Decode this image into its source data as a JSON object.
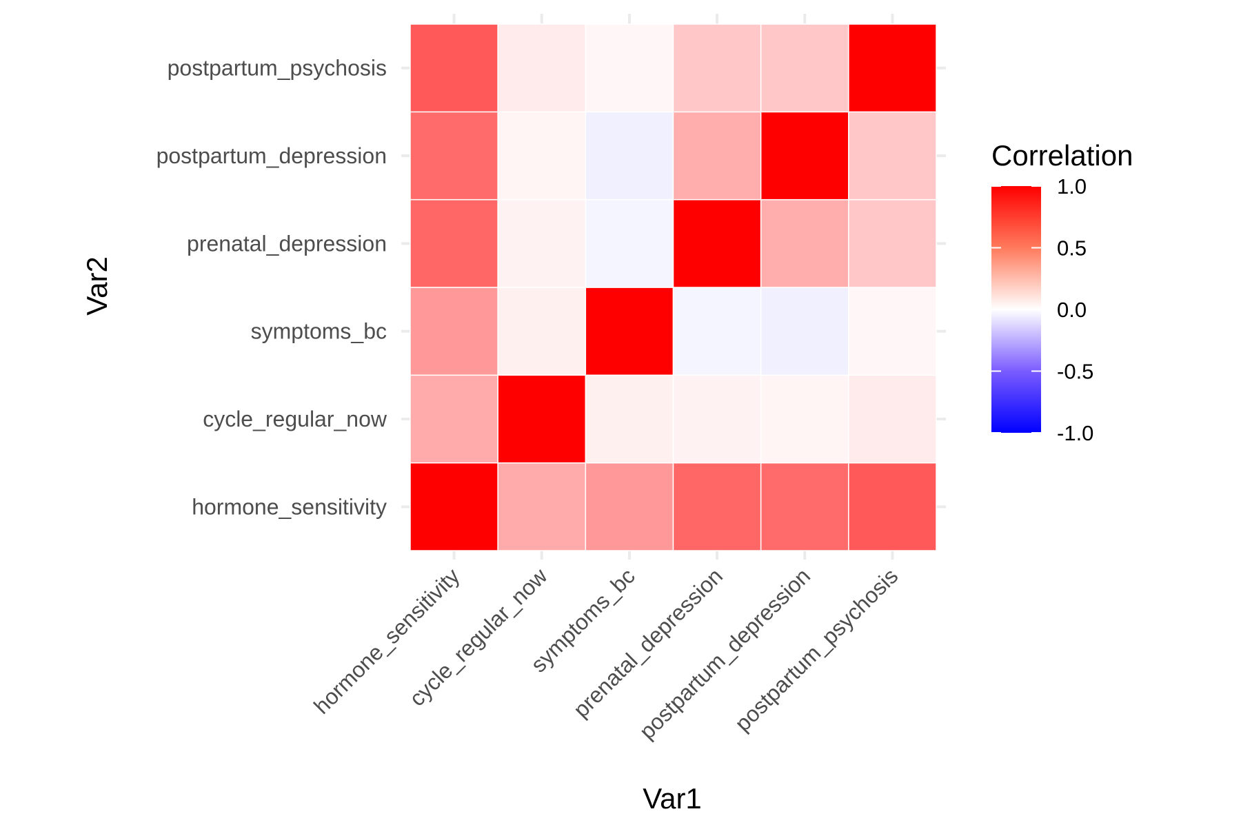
{
  "chart_data": {
    "type": "heatmap",
    "xlabel": "Var1",
    "ylabel": "Var2",
    "variables": [
      "hormone_sensitivity",
      "cycle_regular_now",
      "symptoms_bc",
      "prenatal_depression",
      "postpartum_depression",
      "postpartum_psychosis"
    ],
    "matrix": [
      [
        1.0,
        0.33,
        0.4,
        0.6,
        0.58,
        0.65
      ],
      [
        0.33,
        1.0,
        0.06,
        0.05,
        0.04,
        0.08
      ],
      [
        0.4,
        0.06,
        1.0,
        -0.04,
        -0.06,
        0.03
      ],
      [
        0.6,
        0.05,
        -0.04,
        1.0,
        0.32,
        0.22
      ],
      [
        0.58,
        0.04,
        -0.06,
        0.32,
        1.0,
        0.22
      ],
      [
        0.65,
        0.08,
        0.03,
        0.22,
        0.22,
        1.0
      ]
    ],
    "legend": {
      "title": "Correlation",
      "ticks": [
        1.0,
        0.5,
        0.0,
        -0.5,
        -1.0
      ],
      "tick_labels": [
        "1.0",
        "0.5",
        "0.0",
        "-0.5",
        "-1.0"
      ],
      "position": "right"
    },
    "color_scale": {
      "low": "#0000ff",
      "mid": "#ffffff",
      "high": "#ff0000",
      "limits": [
        -1,
        1
      ]
    },
    "grid": true
  }
}
